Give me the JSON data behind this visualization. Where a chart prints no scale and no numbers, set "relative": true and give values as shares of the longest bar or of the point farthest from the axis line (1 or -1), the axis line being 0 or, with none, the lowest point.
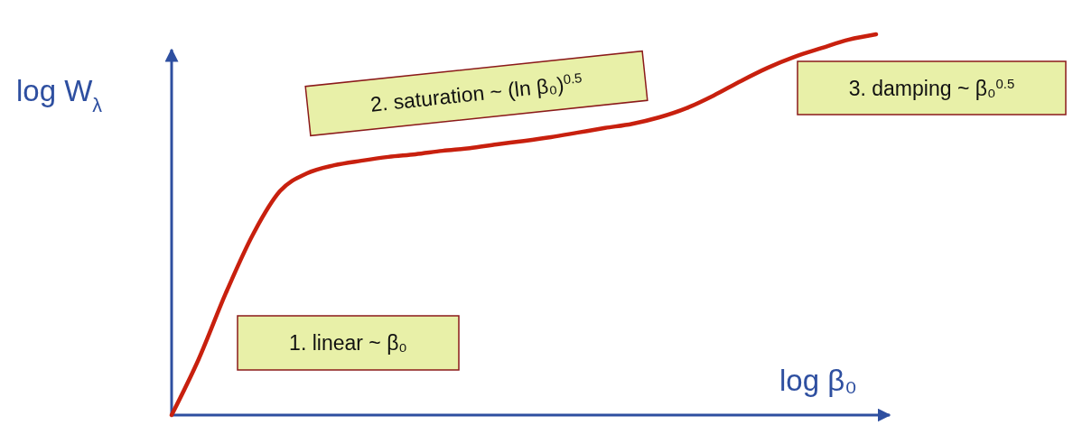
{
  "chart_data": {
    "type": "line",
    "relative": true,
    "xlabel": "log β₀",
    "ylabel": "log W$_{λ}$",
    "categories": [
      null,
      null,
      null,
      null,
      null,
      null,
      null,
      null,
      null,
      null,
      null,
      null,
      null,
      null,
      null,
      null,
      null,
      null,
      null,
      null,
      null,
      null,
      null,
      null,
      null,
      null,
      null
    ],
    "series": [
      {
        "color": "#c8200e",
        "values": [
          0,
          0.147,
          0.32,
          0.474,
          0.588,
          0.635,
          0.656,
          0.668,
          0.678,
          0.685,
          0.694,
          0.701,
          0.711,
          0.72,
          0.73,
          0.742,
          0.754,
          0.765,
          0.782,
          0.806,
          0.839,
          0.877,
          0.912,
          0.941,
          0.964,
          0.986,
          1
        ]
      }
    ],
    "annotations": [
      "1. linear  ~ β₀",
      "2. saturation ~ (ln β₀)$^{0.5}$",
      "3. damping  ~ β₀$^{0.5}$"
    ]
  }
}
